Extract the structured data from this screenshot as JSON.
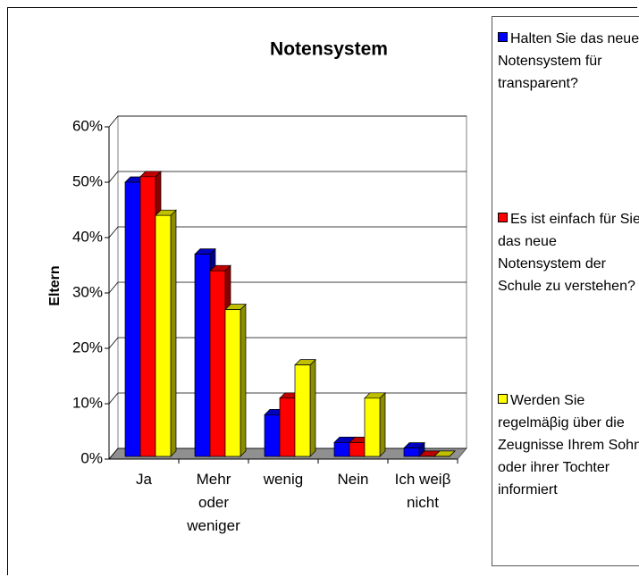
{
  "chart_data": {
    "type": "bar3d",
    "title": "Notensystem",
    "y_label": "Eltern",
    "categories": [
      "Ja",
      "Mehr oder weniger",
      "wenig",
      "Nein",
      "Ich weiβ nicht"
    ],
    "series": [
      {
        "name": "Halten Sie das neue Notensystem für transparent?",
        "color": "#0000ff",
        "values": [
          50,
          37,
          8,
          3,
          2
        ]
      },
      {
        "name": "Es ist einfach für Sie das neue Notensystem der Schule zu verstehen?",
        "color": "#ff0000",
        "values": [
          51,
          34,
          11,
          3,
          0.5
        ]
      },
      {
        "name": "Werden Sie regelmäβig über die Zeugnisse Ihrem Sohn oder ihrer Tochter informiert",
        "color": "#ffff00",
        "values": [
          44,
          27,
          17,
          11,
          0.5
        ]
      }
    ],
    "ylim": [
      0,
      60
    ],
    "yticks": [
      {
        "value": 0,
        "label": "0%"
      },
      {
        "value": 10,
        "label": "10%"
      },
      {
        "value": 20,
        "label": "20%"
      },
      {
        "value": 30,
        "label": "30%"
      },
      {
        "value": 40,
        "label": "40%"
      },
      {
        "value": 50,
        "label": "50%"
      },
      {
        "value": 60,
        "label": "60%"
      }
    ],
    "grid": true,
    "legend": "right"
  }
}
